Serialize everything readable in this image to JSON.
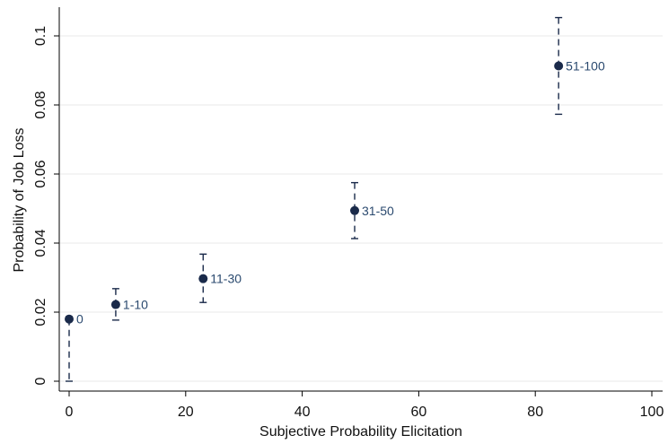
{
  "chart_data": {
    "type": "scatter",
    "title": "",
    "xlabel": "Subjective Probability Elicitation",
    "ylabel": "Probability of Job Loss",
    "xlim": [
      0,
      100
    ],
    "ylim": [
      0,
      0.1
    ],
    "x_ticks": [
      0,
      20,
      40,
      60,
      80,
      100
    ],
    "x_tick_labels": [
      "0",
      "20",
      "40",
      "60",
      "80",
      "100"
    ],
    "y_ticks": [
      0,
      0.02,
      0.04,
      0.06,
      0.08,
      0.1
    ],
    "y_tick_labels": [
      "0",
      "0.02",
      "0.04",
      "0.06",
      "0.08",
      "0.1"
    ],
    "grid": "horizontal",
    "error_bars": "dashed, capped",
    "colors": {
      "marker": "#1a2a4a",
      "label": "#2b4a6f",
      "grid": "#eaeaea"
    },
    "points": [
      {
        "label": "0",
        "x": 0,
        "y": 0.018,
        "err_low": 0.0,
        "err_high": 0.018
      },
      {
        "label": "1-10",
        "x": 8,
        "y": 0.0222,
        "err_low": 0.0177,
        "err_high": 0.0268
      },
      {
        "label": "11-30",
        "x": 23,
        "y": 0.0297,
        "err_low": 0.0228,
        "err_high": 0.0368
      },
      {
        "label": "31-50",
        "x": 49,
        "y": 0.0494,
        "err_low": 0.0413,
        "err_high": 0.0575
      },
      {
        "label": "51-100",
        "x": 84,
        "y": 0.0913,
        "err_low": 0.0773,
        "err_high": 0.1053
      }
    ]
  }
}
